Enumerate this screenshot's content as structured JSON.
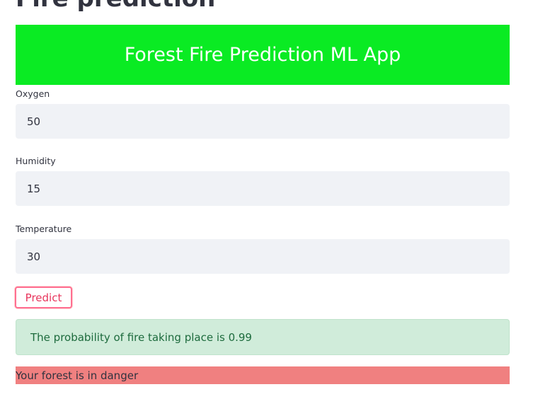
{
  "page": {
    "title": "Fire prediction"
  },
  "banner": {
    "text": "Forest Fire Prediction ML App",
    "background_color": "#0aeb23",
    "text_color": "#ffffff"
  },
  "form": {
    "fields": [
      {
        "label": "Oxygen",
        "value": "50"
      },
      {
        "label": "Humidity",
        "value": "15"
      },
      {
        "label": "Temperature",
        "value": "30"
      }
    ],
    "input_background": "#f0f2f6"
  },
  "predict_button": {
    "label": "Predict",
    "accent_color": "#ff4b6e"
  },
  "result": {
    "probability_text": "The probability of fire taking place is 0.99",
    "success_background": "#d0ecda",
    "verdict_text": "Your forest is in danger",
    "verdict_background": "#f08080"
  }
}
